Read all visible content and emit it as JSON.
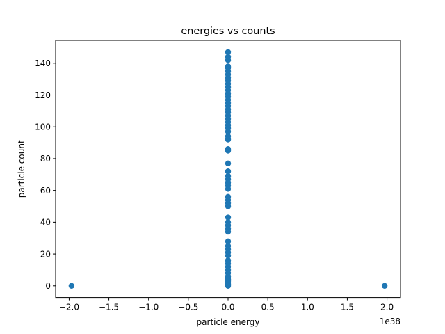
{
  "chart_data": {
    "type": "scatter",
    "title": "energies vs counts",
    "xlabel": "particle energy",
    "ylabel": "particle count",
    "x_offset_label": "1e38",
    "x_scale_factor": 1e+38,
    "xlim": [
      -2.17,
      2.17
    ],
    "ylim": [
      -7.35,
      154.35
    ],
    "x_ticks": [
      -2.0,
      -1.5,
      -1.0,
      -0.5,
      0.0,
      0.5,
      1.0,
      1.5,
      2.0
    ],
    "x_tick_labels": [
      "−2.0",
      "−1.5",
      "−1.0",
      "−0.5",
      "0.0",
      "0.5",
      "1.0",
      "1.5",
      "2.0"
    ],
    "y_ticks": [
      0,
      20,
      40,
      60,
      80,
      100,
      120,
      140
    ],
    "y_tick_labels": [
      "0",
      "20",
      "40",
      "60",
      "80",
      "100",
      "120",
      "140"
    ],
    "grid": false,
    "marker_color": "#1f77b4",
    "series": [
      {
        "points": [
          [
            -1.97,
            0
          ],
          [
            1.97,
            0
          ],
          [
            0,
            0
          ],
          [
            0,
            1
          ],
          [
            0,
            2
          ],
          [
            0,
            3
          ],
          [
            0,
            4
          ],
          [
            0,
            5
          ],
          [
            0,
            6
          ],
          [
            0,
            8
          ],
          [
            0,
            10
          ],
          [
            0,
            12
          ],
          [
            0,
            14
          ],
          [
            0,
            16
          ],
          [
            0,
            19
          ],
          [
            0,
            21
          ],
          [
            0,
            23
          ],
          [
            0,
            25
          ],
          [
            0,
            28
          ],
          [
            0,
            34
          ],
          [
            0,
            36
          ],
          [
            0,
            38
          ],
          [
            0,
            40
          ],
          [
            0,
            43
          ],
          [
            0,
            50
          ],
          [
            0,
            52
          ],
          [
            0,
            54
          ],
          [
            0,
            56
          ],
          [
            0,
            61
          ],
          [
            0,
            63
          ],
          [
            0,
            65
          ],
          [
            0,
            67
          ],
          [
            0,
            69
          ],
          [
            0,
            72
          ],
          [
            0,
            77
          ],
          [
            0,
            85
          ],
          [
            0,
            86
          ],
          [
            0,
            92
          ],
          [
            0,
            94
          ],
          [
            0,
            97
          ],
          [
            0,
            99
          ],
          [
            0,
            101
          ],
          [
            0,
            103
          ],
          [
            0,
            105
          ],
          [
            0,
            107
          ],
          [
            0,
            109
          ],
          [
            0,
            111
          ],
          [
            0,
            113
          ],
          [
            0,
            115
          ],
          [
            0,
            117
          ],
          [
            0,
            119
          ],
          [
            0,
            121
          ],
          [
            0,
            123
          ],
          [
            0,
            125
          ],
          [
            0,
            127
          ],
          [
            0,
            129
          ],
          [
            0,
            131
          ],
          [
            0,
            133
          ],
          [
            0,
            135
          ],
          [
            0,
            137
          ],
          [
            0,
            138
          ],
          [
            0,
            142
          ],
          [
            0,
            144
          ],
          [
            0,
            147
          ]
        ]
      }
    ]
  }
}
